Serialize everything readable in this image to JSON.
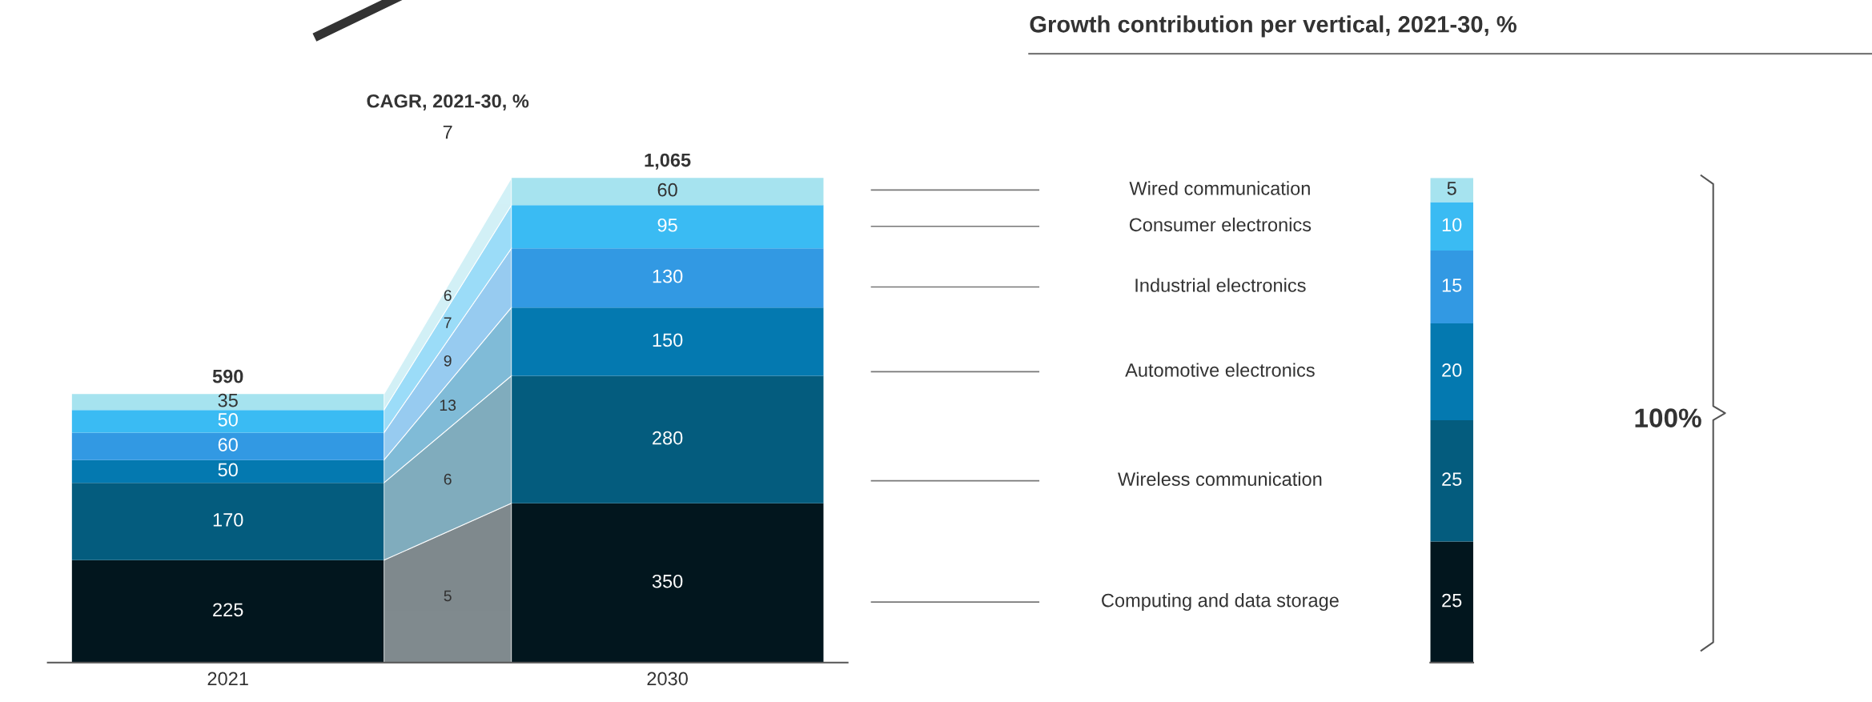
{
  "chart_data": [
    {
      "type": "bar",
      "stacked": true,
      "categories": [
        "2021",
        "2030"
      ],
      "data_labels": true,
      "totals": [
        "590",
        "1,065"
      ],
      "legend": false,
      "grid": false,
      "series": [
        {
          "name": "Computing and data storage",
          "color": "#02161e",
          "values": [
            225,
            350
          ]
        },
        {
          "name": "Wireless communication",
          "color": "#045c7e",
          "values": [
            170,
            280
          ]
        },
        {
          "name": "Automotive electronics",
          "color": "#0479b0",
          "values": [
            50,
            150
          ]
        },
        {
          "name": "Industrial electronics",
          "color": "#3299e3",
          "values": [
            60,
            130
          ]
        },
        {
          "name": "Consumer electronics",
          "color": "#3abbf3",
          "values": [
            50,
            95
          ]
        },
        {
          "name": "Wired communication",
          "color": "#a6e3ef",
          "values": [
            35,
            60
          ]
        }
      ],
      "annotations": [
        "CAGR, 2021-30, %",
        "7",
        "5",
        "6",
        "13",
        "9",
        "7",
        "6"
      ]
    },
    {
      "type": "bar",
      "stacked": true,
      "categories": [
        null
      ],
      "data_labels": true,
      "title": "Growth contribution per vertical, 2021-30, %",
      "legend": false,
      "grid": false,
      "series": [
        {
          "color": "#02161e",
          "values": [
            25
          ]
        },
        {
          "color": "#045c7e",
          "values": [
            25
          ]
        },
        {
          "color": "#0479b0",
          "values": [
            20
          ]
        },
        {
          "color": "#3299e3",
          "values": [
            15
          ]
        },
        {
          "color": "#3abbf3",
          "values": [
            10
          ]
        },
        {
          "color": "#a6e3ef",
          "values": [
            5
          ]
        }
      ],
      "annotations": [
        "100%"
      ]
    }
  ]
}
